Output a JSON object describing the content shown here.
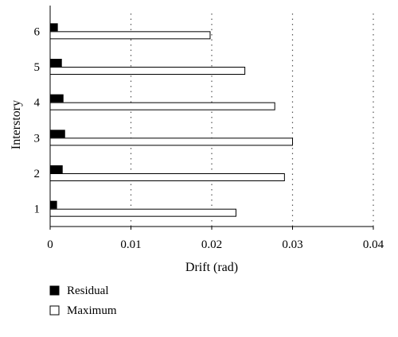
{
  "chart_data": {
    "type": "bar",
    "orientation": "horizontal",
    "title": "",
    "xlabel": "Drift (rad)",
    "ylabel": "Interstory",
    "categories": [
      "1",
      "2",
      "3",
      "4",
      "5",
      "6"
    ],
    "xlim": [
      0,
      0.04
    ],
    "xticks": [
      "0",
      "0.01",
      "0.02",
      "0.03",
      "0.04"
    ],
    "grid": "vertical dotted",
    "legend_position": "bottom-left",
    "series": [
      {
        "name": "Residual",
        "color": "#000000",
        "values": [
          0.0008,
          0.0015,
          0.0018,
          0.0016,
          0.0014,
          0.0009
        ]
      },
      {
        "name": "Maximum",
        "color": "#ffffff",
        "values": [
          0.023,
          0.029,
          0.03,
          0.0278,
          0.0241,
          0.0198
        ]
      }
    ]
  }
}
